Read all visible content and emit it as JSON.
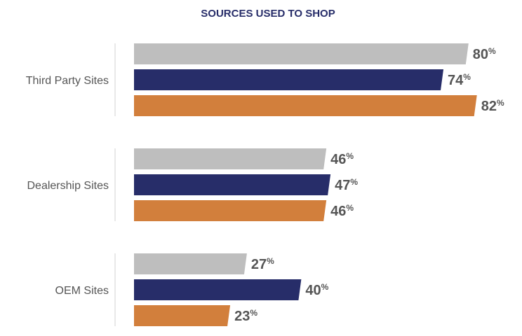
{
  "chart_data": {
    "type": "bar",
    "orientation": "horizontal",
    "title": "SOURCES USED TO SHOP",
    "categories": [
      "Third Party Sites",
      "Dealership Sites",
      "OEM Sites"
    ],
    "series": [
      {
        "values": [
          80,
          46,
          27
        ],
        "color": "#bebebe"
      },
      {
        "values": [
          74,
          47,
          40
        ],
        "color": "#272d69"
      },
      {
        "values": [
          82,
          46,
          23
        ],
        "color": "#d27f3c"
      }
    ],
    "value_suffix": "%",
    "xlim": [
      0,
      100
    ],
    "grid": false,
    "legend": "none"
  },
  "colors": {
    "title": "#272d69",
    "label_text": "#555555",
    "axis_line": "#d0d0d0"
  }
}
